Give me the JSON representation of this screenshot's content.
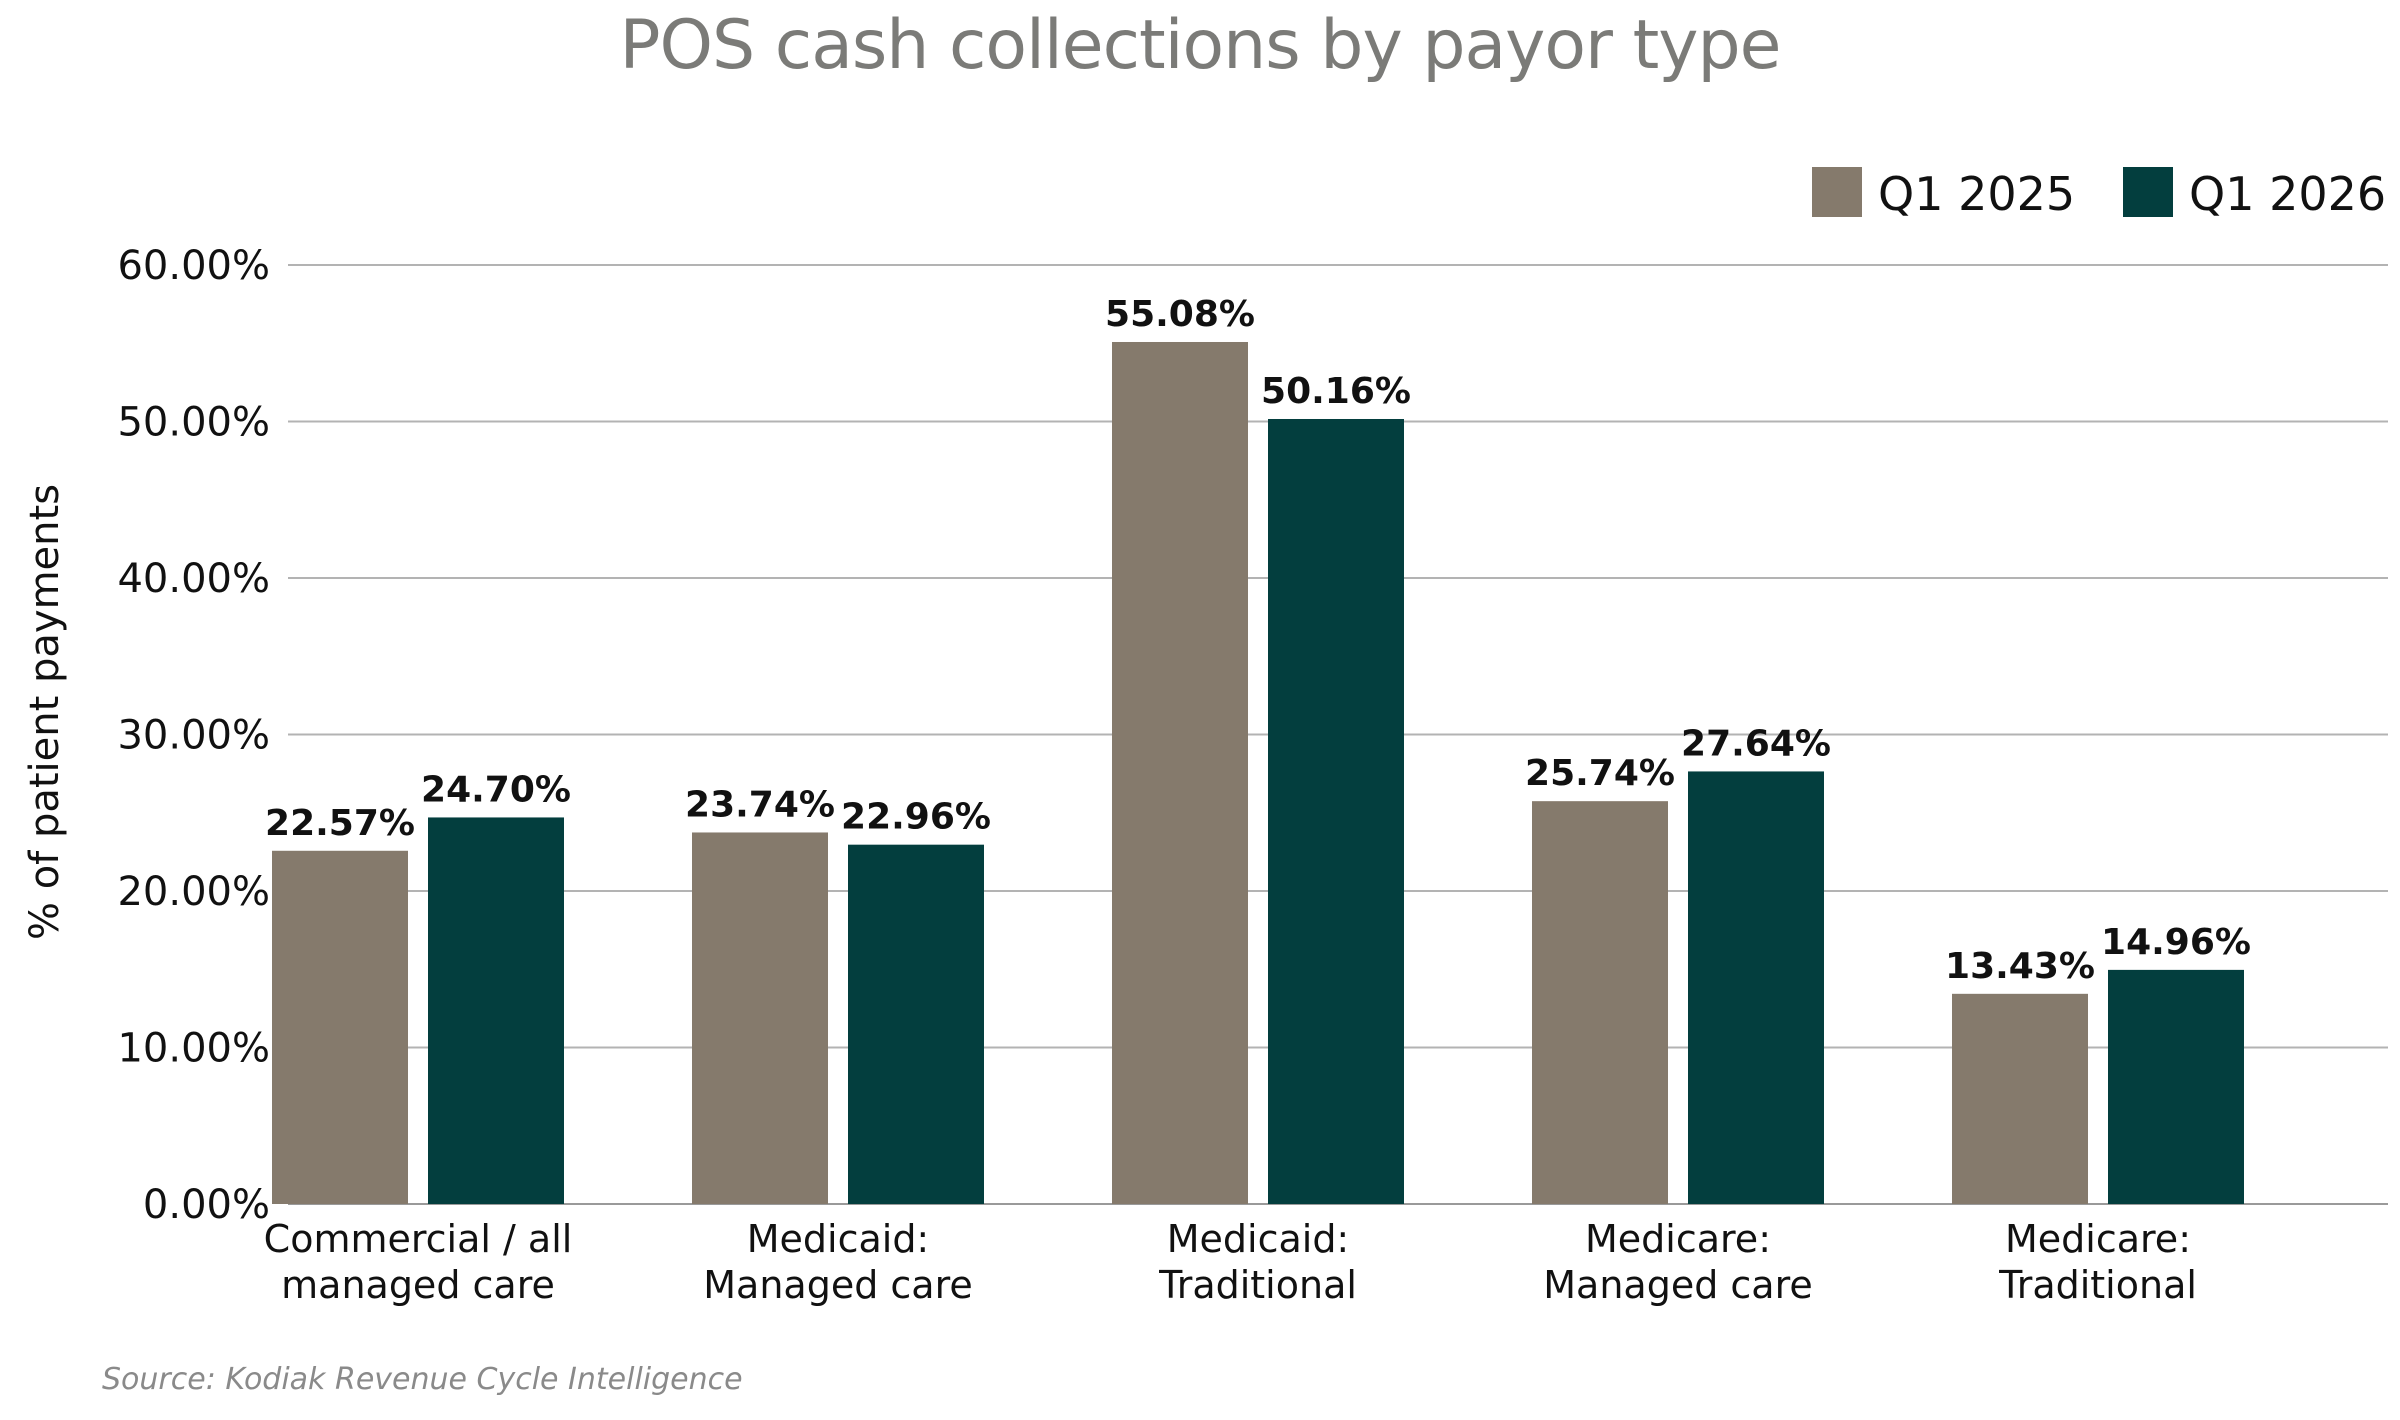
{
  "chart_data": {
    "type": "bar",
    "title": "POS cash collections by payor type",
    "ylabel": "% of patient payments",
    "xlabel": "",
    "categories": [
      [
        "Commercial / all",
        "managed care"
      ],
      [
        "Medicaid:",
        "Managed care"
      ],
      [
        "Medicaid:",
        "Traditional"
      ],
      [
        "Medicare:",
        "Managed care"
      ],
      [
        "Medicare:",
        "Traditional"
      ]
    ],
    "series": [
      {
        "name": "Q1 2025",
        "color": "#857a6c",
        "values": [
          22.57,
          23.74,
          55.08,
          25.74,
          13.43
        ],
        "labels": [
          "22.57%",
          "23.74%",
          "55.08%",
          "25.74%",
          "13.43%"
        ]
      },
      {
        "name": "Q1 2026",
        "color": "#033e3e",
        "values": [
          24.7,
          22.96,
          50.16,
          27.64,
          14.96
        ],
        "labels": [
          "24.70%",
          "22.96%",
          "50.16%",
          "27.64%",
          "14.96%"
        ]
      }
    ],
    "ylim": [
      0,
      60
    ],
    "yticks": [
      0,
      10,
      20,
      30,
      40,
      50,
      60
    ],
    "ytick_labels": [
      "0.00%",
      "10.00%",
      "20.00%",
      "30.00%",
      "40.00%",
      "50.00%",
      "60.00%"
    ],
    "grid": true,
    "legend": "top-right"
  },
  "source": "Source: Kodiak Revenue Cycle Intelligence"
}
